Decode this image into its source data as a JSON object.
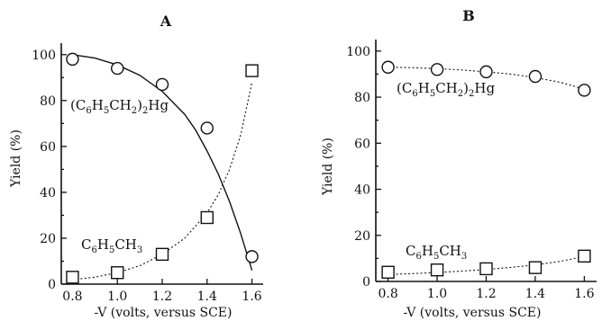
{
  "chart_data": [
    {
      "type": "scatter",
      "panel": "A",
      "xlabel": "-V (volts, versus SCE)",
      "ylabel": "Yield (%)",
      "xlim": [
        0.75,
        1.65
      ],
      "ylim": [
        0,
        105
      ],
      "xticks": [
        "0.8",
        "1.0",
        "1.2",
        "1.4",
        "1.6"
      ],
      "yticks": [
        "0",
        "20",
        "40",
        "60",
        "80",
        "100"
      ],
      "grid": false,
      "series": [
        {
          "name": "(C6H5CH2)2Hg",
          "label_main": "(C",
          "label_sub1": "6",
          "label_mid": "H",
          "label_sub2": "5",
          "label_mid2": "CH",
          "label_sub3": "2",
          "label_mid3": ")",
          "label_sub4": "2",
          "label_end": "Hg",
          "marker": "circle",
          "line": "solid",
          "x": [
            0.8,
            1.0,
            1.2,
            1.4,
            1.6
          ],
          "y": [
            98,
            94,
            87,
            68,
            12
          ],
          "curve_x": [
            0.8,
            0.9,
            1.0,
            1.1,
            1.2,
            1.3,
            1.35,
            1.4,
            1.45,
            1.5,
            1.55,
            1.6
          ],
          "curve_y": [
            100,
            98.5,
            95.5,
            91,
            84,
            74,
            67,
            58,
            48,
            36,
            22,
            6
          ]
        },
        {
          "name": "C6H5CH3",
          "label_main": "C",
          "label_sub1": "6",
          "label_mid": "H",
          "label_sub2": "5",
          "label_end": "CH",
          "label_sub3": "3",
          "marker": "square",
          "line": "dotted",
          "x": [
            0.8,
            1.0,
            1.2,
            1.4,
            1.6
          ],
          "y": [
            3,
            5,
            13,
            29,
            93
          ],
          "curve_x": [
            0.8,
            0.9,
            1.0,
            1.1,
            1.2,
            1.3,
            1.4,
            1.45,
            1.5,
            1.55,
            1.6
          ],
          "curve_y": [
            2,
            3,
            5,
            8,
            13,
            20,
            31,
            39,
            50,
            65,
            88
          ]
        }
      ]
    },
    {
      "type": "scatter",
      "panel": "B",
      "xlabel": "-V (volts, versus SCE)",
      "ylabel": "Yield (%)",
      "xlim": [
        0.75,
        1.65
      ],
      "ylim": [
        0,
        105
      ],
      "xticks": [
        "0.8",
        "1.0",
        "1.2",
        "1.4",
        "1.6"
      ],
      "yticks": [
        "0",
        "20",
        "40",
        "60",
        "80",
        "100"
      ],
      "grid": false,
      "series": [
        {
          "name": "(C6H5CH2)2Hg",
          "label_main": "(C",
          "label_sub1": "6",
          "label_mid": "H",
          "label_sub2": "5",
          "label_mid2": "CH",
          "label_sub3": "2",
          "label_mid3": ")",
          "label_sub4": "2",
          "label_end": "Hg",
          "marker": "circle",
          "line": "dash-dot",
          "x": [
            0.8,
            1.0,
            1.2,
            1.4,
            1.6
          ],
          "y": [
            93,
            92,
            91,
            89,
            83
          ],
          "curve_x": [
            0.8,
            0.9,
            1.0,
            1.1,
            1.2,
            1.3,
            1.4,
            1.5,
            1.6
          ],
          "curve_y": [
            93,
            92.8,
            92.4,
            91.8,
            91,
            90,
            88.5,
            86.5,
            83.5
          ]
        },
        {
          "name": "C6H5CH3",
          "label_main": "C",
          "label_sub1": "6",
          "label_mid": "H",
          "label_sub2": "5",
          "label_end": "CH",
          "label_sub3": "3",
          "marker": "square",
          "line": "dotted",
          "x": [
            0.8,
            1.0,
            1.2,
            1.4,
            1.6
          ],
          "y": [
            4,
            5,
            5.5,
            6,
            11
          ],
          "curve_x": [
            0.8,
            0.9,
            1.0,
            1.1,
            1.2,
            1.3,
            1.4,
            1.5,
            1.6
          ],
          "curve_y": [
            3,
            3.4,
            3.9,
            4.5,
            5.2,
            6.1,
            7.2,
            8.7,
            10.8
          ]
        }
      ]
    }
  ]
}
